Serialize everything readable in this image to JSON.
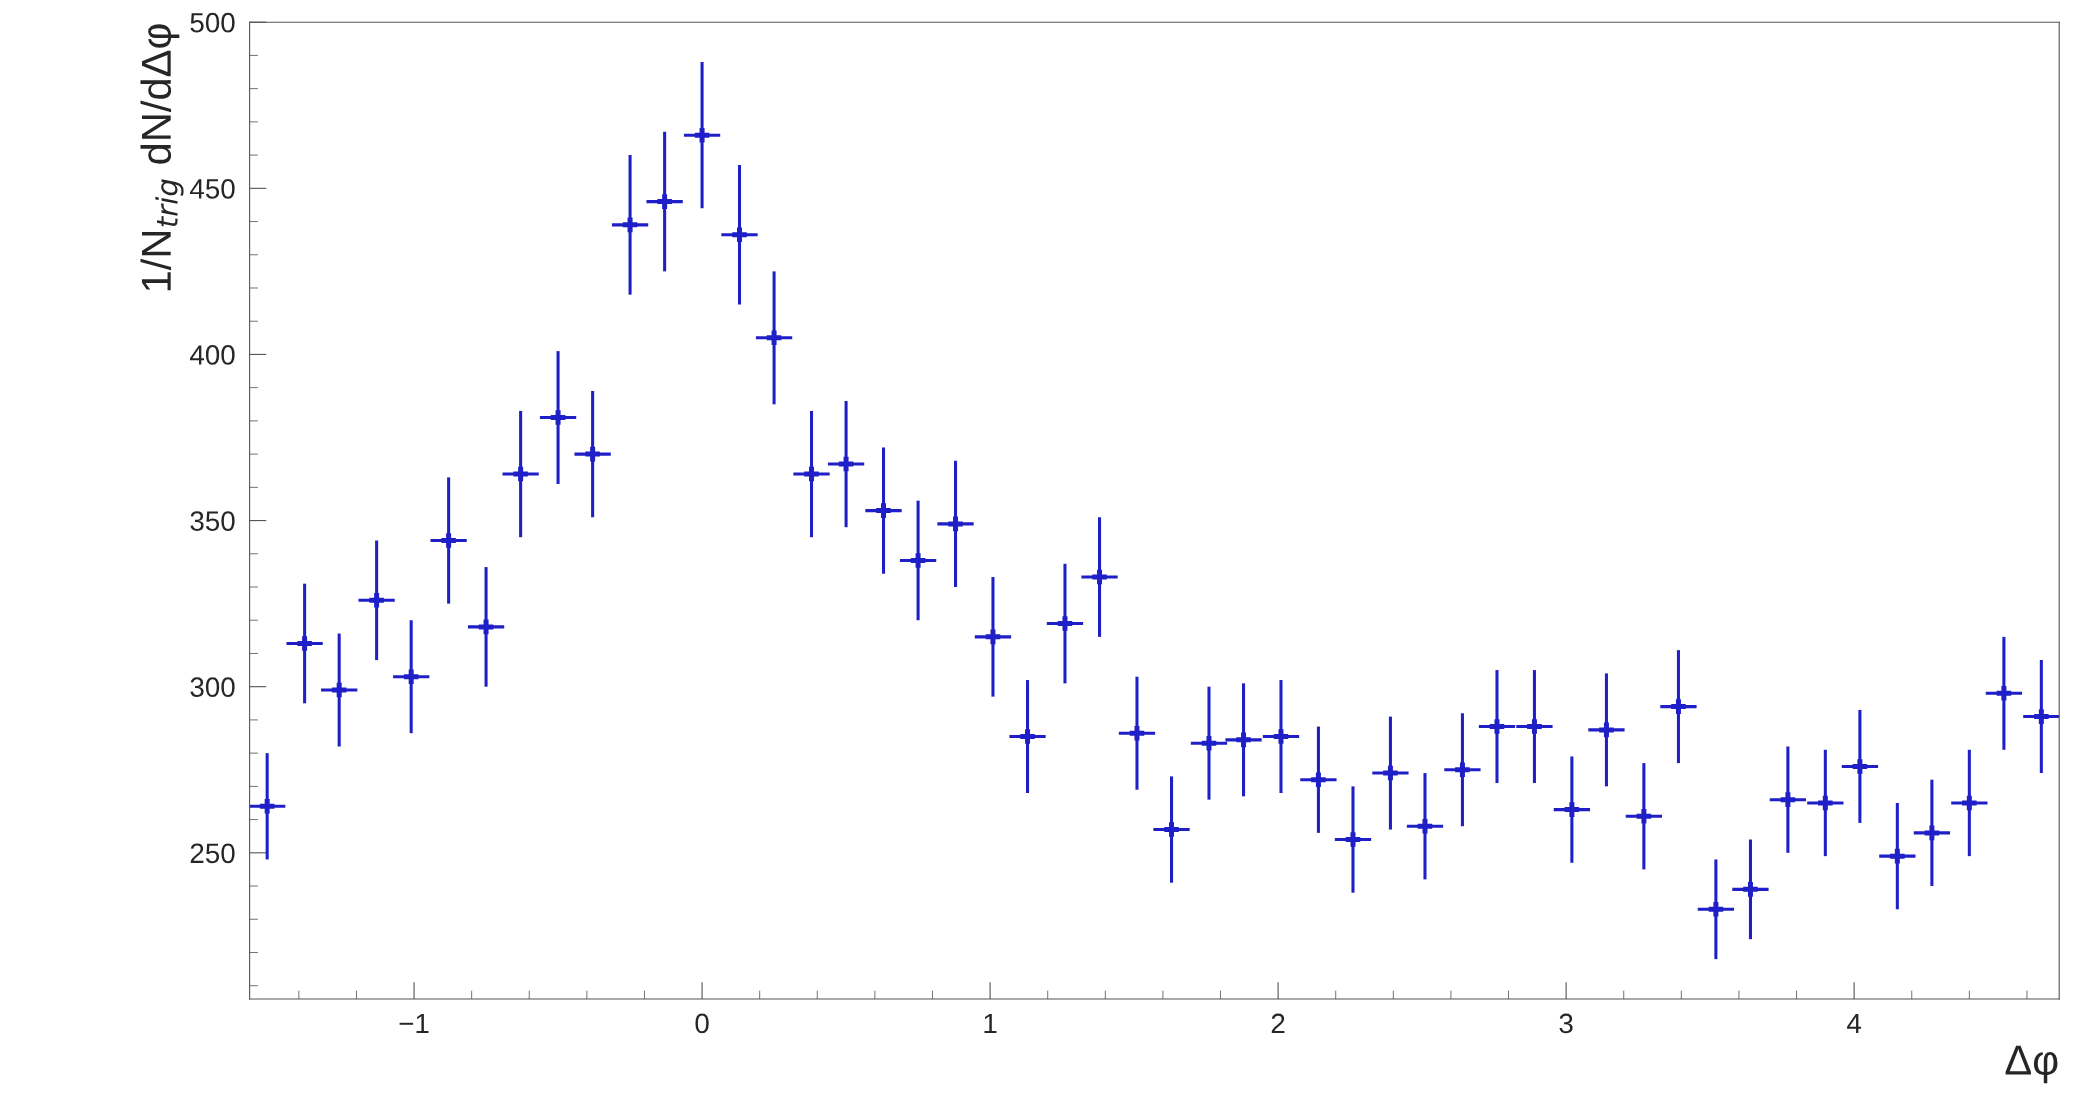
{
  "chart_data": {
    "type": "scatter",
    "xlabel": "Δφ",
    "ylabel": "1/N$_{trig}$ dN/dΔφ",
    "x": [
      -1.51,
      -1.38,
      -1.26,
      -1.13,
      -1.01,
      -0.88,
      -0.75,
      -0.63,
      -0.5,
      -0.38,
      -0.25,
      -0.13,
      0.0,
      0.13,
      0.25,
      0.38,
      0.5,
      0.63,
      0.75,
      0.88,
      1.01,
      1.13,
      1.26,
      1.38,
      1.51,
      1.63,
      1.76,
      1.88,
      2.01,
      2.14,
      2.26,
      2.39,
      2.51,
      2.64,
      2.76,
      2.89,
      3.02,
      3.14,
      3.27,
      3.39,
      3.52,
      3.64,
      3.77,
      3.9,
      4.02,
      4.15,
      4.27,
      4.4,
      4.52,
      4.65
    ],
    "series": [
      {
        "color": "#1f1fc8",
        "values": [
          264,
          313,
          299,
          326,
          303,
          344,
          318,
          364,
          381,
          370,
          439,
          446,
          466,
          436,
          405,
          364,
          367,
          353,
          338,
          349,
          315,
          285,
          319,
          333,
          286,
          257,
          283,
          284,
          285,
          272,
          254,
          274,
          258,
          275,
          288,
          288,
          263,
          287,
          261,
          294,
          233,
          239,
          266,
          265,
          276,
          249,
          256,
          265,
          298,
          291
        ],
        "errors": [
          16,
          18,
          17,
          18,
          17,
          19,
          18,
          19,
          20,
          19,
          21,
          21,
          22,
          21,
          20,
          19,
          19,
          19,
          18,
          19,
          18,
          17,
          18,
          18,
          17,
          16,
          17,
          17,
          17,
          16,
          16,
          17,
          16,
          17,
          17,
          17,
          16,
          17,
          16,
          17,
          15,
          15,
          16,
          16,
          17,
          16,
          16,
          16,
          17,
          17
        ],
        "xerrors": [
          0.063,
          0.063,
          0.063,
          0.063,
          0.063,
          0.063,
          0.063,
          0.063,
          0.063,
          0.063,
          0.063,
          0.063,
          0.063,
          0.063,
          0.063,
          0.063,
          0.063,
          0.063,
          0.063,
          0.063,
          0.063,
          0.063,
          0.063,
          0.063,
          0.063,
          0.063,
          0.063,
          0.063,
          0.063,
          0.063,
          0.063,
          0.063,
          0.063,
          0.063,
          0.063,
          0.063,
          0.063,
          0.063,
          0.063,
          0.063,
          0.063,
          0.063,
          0.063,
          0.063,
          0.063,
          0.063,
          0.063,
          0.063,
          0.063,
          0.063
        ]
      }
    ],
    "marker": "cross",
    "xlim": [
      -1.571,
      4.712
    ],
    "ylim": [
      206,
      500
    ],
    "xticks": [
      {
        "value": -1,
        "label": "−1"
      },
      0,
      1,
      2,
      3,
      4
    ],
    "yticks": [
      250,
      300,
      350,
      400,
      450,
      500
    ],
    "grid": false,
    "legend": false
  }
}
